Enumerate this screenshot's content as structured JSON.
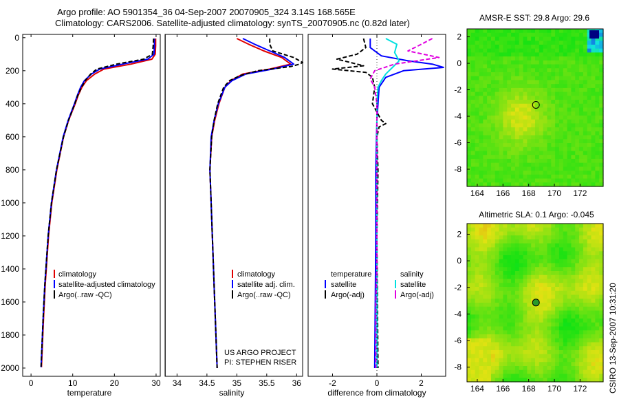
{
  "header": {
    "line1": "Argo profile: AO 5901354_36 04-Sep-2007 20070905_324 3.14S 168.565E",
    "line2": "Climatology: CARS2006. Satellite-adjusted climatology: synTS_20070905.nc (0.82d later)"
  },
  "colors": {
    "red": "#e00000",
    "blue": "#0000ff",
    "black": "#000000",
    "cyan": "#00e0e0",
    "magenta": "#e000e0"
  },
  "chart_data": [
    {
      "type": "line",
      "id": "temperature",
      "xlabel": "temperature",
      "xlim": [
        -2,
        31
      ],
      "ylim": [
        2050,
        -20
      ],
      "xticks": [
        0,
        10,
        20,
        30
      ],
      "yticks": [
        0,
        200,
        400,
        600,
        800,
        1000,
        1200,
        1400,
        1600,
        1800,
        2000
      ],
      "legend": [
        "climatology",
        "satellite-adjusted climatology",
        "Argo(..raw -QC)"
      ],
      "series": [
        {
          "name": "climatology",
          "color": "red",
          "dash": "",
          "depth": [
            5,
            50,
            100,
            130,
            160,
            190,
            220,
            260,
            300,
            350,
            400,
            500,
            600,
            800,
            1000,
            1200,
            1500,
            1700,
            1995
          ],
          "values": [
            29.9,
            29.9,
            29.8,
            29.0,
            24.0,
            17.5,
            15.3,
            13.3,
            12.2,
            11.3,
            10.6,
            9.0,
            7.8,
            6.2,
            5.0,
            4.2,
            3.4,
            3.0,
            2.5
          ]
        },
        {
          "name": "satellite-adjusted climatology",
          "color": "blue",
          "dash": "",
          "depth": [
            5,
            50,
            100,
            130,
            160,
            190,
            220,
            260,
            300,
            350,
            400,
            500,
            600,
            800,
            1000,
            1200,
            1500,
            1700,
            1995
          ],
          "values": [
            29.6,
            29.6,
            29.5,
            28.0,
            22.0,
            16.5,
            14.5,
            12.8,
            11.9,
            11.1,
            10.4,
            8.9,
            7.7,
            6.1,
            4.9,
            4.1,
            3.3,
            2.9,
            2.4
          ]
        },
        {
          "name": "Argo(..raw -QC)",
          "color": "black",
          "dash": "6,3",
          "depth": [
            5,
            50,
            100,
            130,
            160,
            190,
            220,
            260,
            300,
            350,
            400,
            500,
            600,
            800,
            1000,
            1200,
            1500,
            1700,
            1995
          ],
          "values": [
            29.4,
            29.3,
            29.1,
            27.0,
            20.5,
            15.8,
            14.3,
            13.0,
            12.1,
            11.2,
            10.5,
            9.0,
            7.8,
            6.1,
            4.9,
            4.1,
            3.3,
            2.9,
            2.4
          ]
        }
      ]
    },
    {
      "type": "line",
      "id": "salinity",
      "xlabel": "salinity",
      "xlim": [
        33.8,
        36.1
      ],
      "ylim": [
        2050,
        -20
      ],
      "xticks": [
        34,
        34.5,
        35,
        35.5,
        36
      ],
      "yticks": [],
      "legend": [
        "climatology",
        "satellite adj. clim.",
        "Argo(..raw -QC)"
      ],
      "series": [
        {
          "name": "climatology",
          "color": "red",
          "dash": "",
          "depth": [
            5,
            40,
            80,
            120,
            160,
            190,
            220,
            260,
            300,
            400,
            500,
            600,
            800,
            1000,
            1500,
            2000
          ],
          "values": [
            35.0,
            35.2,
            35.45,
            35.75,
            35.9,
            35.55,
            35.1,
            34.9,
            34.8,
            34.7,
            34.63,
            34.58,
            34.55,
            34.57,
            34.62,
            34.67
          ]
        },
        {
          "name": "satellite adj. clim.",
          "color": "blue",
          "dash": "",
          "depth": [
            5,
            40,
            80,
            120,
            160,
            190,
            220,
            260,
            300,
            400,
            500,
            600,
            800,
            1000,
            1500,
            2000
          ],
          "values": [
            35.1,
            35.3,
            35.55,
            35.8,
            35.95,
            35.6,
            35.15,
            34.92,
            34.8,
            34.69,
            34.62,
            34.57,
            34.55,
            34.57,
            34.62,
            34.67
          ]
        },
        {
          "name": "Argo(..raw -QC)",
          "color": "black",
          "dash": "6,3",
          "depth": [
            5,
            40,
            80,
            120,
            150,
            160,
            175,
            200,
            230,
            260,
            300,
            400,
            500,
            600,
            800,
            1000,
            1500,
            2000
          ],
          "values": [
            35.55,
            35.55,
            35.6,
            35.95,
            36.1,
            36.05,
            35.9,
            35.35,
            35.05,
            34.88,
            34.78,
            34.68,
            34.62,
            34.58,
            34.55,
            34.57,
            34.62,
            34.67
          ]
        }
      ]
    },
    {
      "type": "line",
      "id": "difference",
      "xlabel": "difference from climatology",
      "xlim": [
        -3.1,
        3.1
      ],
      "ylim": [
        2050,
        -20
      ],
      "xticks": [
        -2,
        0,
        2
      ],
      "yticks": [],
      "legend_titles": [
        "temperature",
        "salinity"
      ],
      "legend_left": [
        "satellite",
        "Argo(-adj)"
      ],
      "legend_right": [
        "satellite",
        "Argo(-adj)"
      ],
      "series": [
        {
          "name": "temperature satellite",
          "color": "blue",
          "dash": "",
          "depth": [
            5,
            60,
            110,
            140,
            160,
            180,
            200,
            240,
            300,
            500,
            800,
            1200,
            2000
          ],
          "values": [
            -0.3,
            -0.3,
            0.2,
            1.4,
            2.5,
            3.0,
            1.2,
            0.4,
            0.1,
            0.0,
            -0.05,
            -0.05,
            -0.1
          ]
        },
        {
          "name": "temperature Argo(-adj)",
          "color": "black",
          "dash": "6,3",
          "depth": [
            5,
            60,
            100,
            130,
            150,
            170,
            190,
            210,
            240,
            300,
            400,
            500,
            520,
            540,
            600,
            800,
            1200,
            2000
          ],
          "values": [
            -0.6,
            -0.5,
            -0.9,
            -1.8,
            -1.2,
            -0.6,
            -2.0,
            -0.5,
            -0.2,
            -0.1,
            -0.2,
            0.2,
            0.4,
            0.1,
            0.0,
            0.05,
            0.0,
            0.05
          ]
        },
        {
          "name": "salinity satellite",
          "color": "cyan",
          "dash": "",
          "depth": [
            5,
            40,
            90,
            140,
            180,
            220,
            260,
            300,
            400,
            600,
            1000,
            2000
          ],
          "values": [
            0.4,
            0.9,
            0.8,
            1.0,
            0.7,
            0.4,
            0.2,
            0.05,
            0.0,
            0.0,
            0.0,
            0.0
          ]
        },
        {
          "name": "salinity Argo(-adj)",
          "color": "magenta",
          "dash": "6,3",
          "depth": [
            5,
            40,
            80,
            120,
            160,
            200,
            250,
            300,
            400,
            600,
            1000,
            1400,
            1600,
            1800,
            2000
          ],
          "values": [
            2.5,
            2.0,
            1.4,
            2.8,
            0.8,
            -0.1,
            -0.3,
            -0.1,
            0.0,
            0.0,
            0.0,
            0.0,
            -0.05,
            -0.05,
            -0.05
          ]
        }
      ]
    },
    {
      "type": "heatmap",
      "id": "sst-map",
      "title": "AMSR-E SST: 29.8 Argo: 29.6",
      "xlim": [
        163.2,
        173.8
      ],
      "ylim": [
        -9.3,
        2.6
      ],
      "xticks": [
        164,
        166,
        168,
        170,
        172
      ],
      "yticks": [
        2,
        0,
        -2,
        -4,
        -6,
        -8
      ],
      "marker": {
        "lon": 168.565,
        "lat": -3.14
      }
    },
    {
      "type": "heatmap",
      "id": "sla-map",
      "title": "Altimetric SLA: 0.1 Argo: -0.045",
      "xlim": [
        163.2,
        173.8
      ],
      "ylim": [
        -9.1,
        2.8
      ],
      "xticks": [
        164,
        166,
        168,
        170,
        172
      ],
      "yticks": [
        2,
        0,
        -2,
        -4,
        -6,
        -8
      ],
      "marker": {
        "lon": 168.565,
        "lat": -3.14
      }
    }
  ],
  "credits": {
    "line1": "US ARGO PROJECT",
    "line2": "PI: STEPHEN RISER"
  },
  "timestamp": "CSIRO 13-Sep-2007 10:31:20"
}
